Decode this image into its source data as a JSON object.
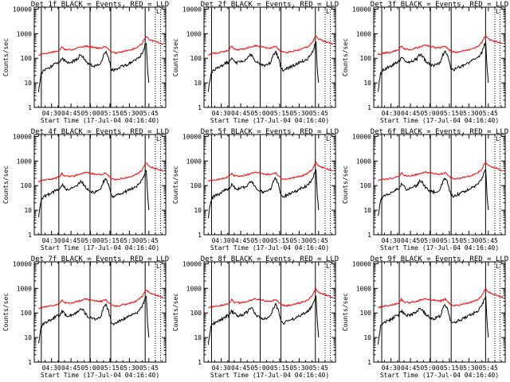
{
  "chart_data": {
    "type": "line",
    "panels": [
      {
        "title": "Det 1f BLACK = Events, RED = LLD",
        "detector": "1f"
      },
      {
        "title": "Det 2f BLACK = Events, RED = LLD",
        "detector": "2f"
      },
      {
        "title": "Det 3f BLACK = Events, RED = LLD",
        "detector": "3f"
      },
      {
        "title": "Det 4f BLACK = Events, RED = LLD",
        "detector": "4f"
      },
      {
        "title": "Det 5f BLACK = Events, RED = LLD",
        "detector": "5f"
      },
      {
        "title": "Det 6f BLACK = Events, RED = LLD",
        "detector": "6f"
      },
      {
        "title": "Det 7f BLACK = Events, RED = LLD",
        "detector": "7f"
      },
      {
        "title": "Det 8f BLACK = Events, RED = LLD",
        "detector": "8f"
      },
      {
        "title": "Det 9f BLACK = Events, RED = LLD",
        "detector": "9f"
      }
    ],
    "xlabel": "Start Time (17-Jul-04 04:16:40)",
    "ylabel": "Counts/sec",
    "x_ticks": [
      "04:30",
      "04:45",
      "05:00",
      "05:15",
      "05:30",
      "05:45"
    ],
    "x_tick_minutes": [
      30,
      45,
      60,
      75,
      90,
      105
    ],
    "xlim_minutes": [
      16.7,
      118
    ],
    "y_scale": "log",
    "ylim": [
      1,
      12000
    ],
    "y_ticks": [
      "1",
      "10",
      "100",
      "1000",
      "10000"
    ],
    "y_tick_values": [
      1,
      10,
      100,
      1000,
      10000
    ],
    "vertical_lines_minutes": [
      22.5,
      36,
      60,
      76,
      102.5
    ],
    "vertical_lines_dotted_minutes": [
      110,
      114
    ],
    "annotation": "L",
    "series": [
      {
        "name": "Events",
        "color": "#000000",
        "x_minutes": [
          20,
          22,
          24,
          26,
          28,
          30,
          32,
          34,
          36,
          38,
          40,
          42,
          44,
          46,
          48,
          50,
          52,
          54,
          56,
          58,
          60,
          62,
          64,
          66,
          68,
          70,
          72,
          74,
          76,
          78,
          80,
          82,
          84,
          86,
          88,
          90,
          92,
          94,
          96,
          98,
          100,
          102,
          103,
          104,
          105
        ],
        "values": [
          5,
          25,
          35,
          40,
          45,
          50,
          60,
          70,
          75,
          110,
          90,
          70,
          75,
          80,
          90,
          100,
          150,
          130,
          90,
          70,
          60,
          55,
          55,
          60,
          70,
          150,
          200,
          110,
          40,
          35,
          40,
          45,
          50,
          55,
          60,
          70,
          80,
          90,
          100,
          130,
          180,
          350,
          450,
          40,
          10
        ]
      },
      {
        "name": "LLD",
        "color": "#ff0000",
        "x_minutes": [
          20,
          24,
          28,
          32,
          36,
          38,
          40,
          44,
          48,
          52,
          56,
          60,
          64,
          68,
          72,
          76,
          80,
          84,
          88,
          92,
          96,
          100,
          102,
          103,
          105,
          108,
          112,
          116
        ],
        "values": [
          150,
          170,
          180,
          200,
          230,
          330,
          250,
          240,
          260,
          300,
          350,
          320,
          290,
          280,
          330,
          200,
          180,
          200,
          220,
          250,
          300,
          450,
          750,
          850,
          650,
          550,
          480,
          400
        ]
      }
    ]
  }
}
